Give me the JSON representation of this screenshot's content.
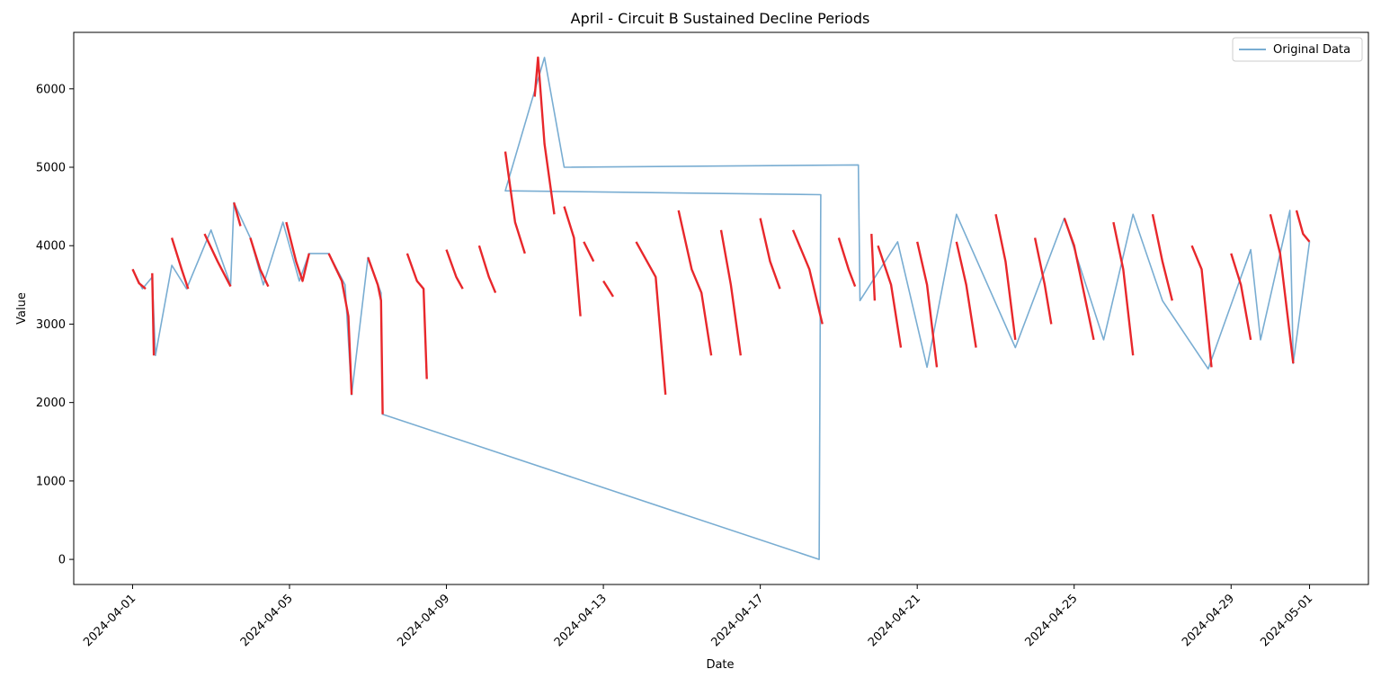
{
  "chart_data": {
    "type": "line",
    "title": "April - Circuit B Sustained Decline Periods",
    "xlabel": "Date",
    "ylabel": "Value",
    "xlim": [
      "2024-03-30T12:00",
      "2024-05-02T12:00"
    ],
    "ylim": [
      -320,
      6720
    ],
    "x_ticks": [
      "2024-04-01",
      "2024-04-05",
      "2024-04-09",
      "2024-04-13",
      "2024-04-17",
      "2024-04-21",
      "2024-04-25",
      "2024-04-29",
      "2024-05-01"
    ],
    "y_ticks": [
      0,
      1000,
      2000,
      3000,
      4000,
      5000,
      6000
    ],
    "grid": false,
    "legend": {
      "position": "top-right",
      "entries": [
        "Original Data"
      ]
    },
    "colors": {
      "original": "#1f77b4",
      "decline": "#e8272b"
    },
    "series": [
      {
        "name": "Original Data",
        "points": [
          [
            "2024-04-01T00:00",
            3700
          ],
          [
            "2024-04-01T06:00",
            3450
          ],
          [
            "2024-04-01T12:00",
            3600
          ],
          [
            "2024-04-01T14:00",
            2600
          ],
          [
            "2024-04-02T00:00",
            3750
          ],
          [
            "2024-04-02T09:00",
            3450
          ],
          [
            "2024-04-03T00:00",
            4200
          ],
          [
            "2024-04-03T12:00",
            3500
          ],
          [
            "2024-04-03T14:00",
            4550
          ],
          [
            "2024-04-04T00:00",
            4100
          ],
          [
            "2024-04-04T08:00",
            3500
          ],
          [
            "2024-04-04T20:00",
            4300
          ],
          [
            "2024-04-05T06:00",
            3550
          ],
          [
            "2024-04-05T12:00",
            3900
          ],
          [
            "2024-04-06T00:00",
            3900
          ],
          [
            "2024-04-06T10:00",
            3500
          ],
          [
            "2024-04-06T14:00",
            2100
          ],
          [
            "2024-04-07T00:00",
            3850
          ],
          [
            "2024-04-07T08:00",
            3400
          ],
          [
            "2024-04-07T09:00",
            1850
          ],
          [
            "2024-04-18T12:00",
            0
          ],
          [
            "2024-04-18T13:00",
            4650
          ],
          [
            "2024-04-10T12:00",
            4700
          ],
          [
            "2024-04-11T12:00",
            6400
          ],
          [
            "2024-04-12T00:00",
            5000
          ],
          [
            "2024-04-19T12:00",
            5030
          ],
          [
            "2024-04-19T13:00",
            3300
          ],
          [
            "2024-04-20T12:00",
            4050
          ],
          [
            "2024-04-21T06:00",
            2450
          ],
          [
            "2024-04-22T00:00",
            4400
          ],
          [
            "2024-04-23T12:00",
            2700
          ],
          [
            "2024-04-24T18:00",
            4350
          ],
          [
            "2024-04-25T18:00",
            2800
          ],
          [
            "2024-04-26T12:00",
            4400
          ],
          [
            "2024-04-27T06:00",
            3300
          ],
          [
            "2024-04-28T10:00",
            2430
          ],
          [
            "2024-04-29T12:00",
            3950
          ],
          [
            "2024-04-29T18:00",
            2800
          ],
          [
            "2024-04-30T12:00",
            4450
          ],
          [
            "2024-04-30T14:00",
            2500
          ],
          [
            "2024-05-01T00:00",
            4050
          ]
        ]
      },
      {
        "name": "",
        "segments": [
          [
            [
              "2024-04-01T00:00",
              3700
            ],
            [
              "2024-04-01T04:00",
              3520
            ],
            [
              "2024-04-01T08:00",
              3450
            ]
          ],
          [
            [
              "2024-04-01T12:00",
              3650
            ],
            [
              "2024-04-01T13:00",
              2600
            ]
          ],
          [
            [
              "2024-04-02T00:00",
              4100
            ],
            [
              "2024-04-02T06:00",
              3700
            ],
            [
              "2024-04-02T10:00",
              3450
            ]
          ],
          [
            [
              "2024-04-02T20:00",
              4150
            ],
            [
              "2024-04-03T04:00",
              3800
            ],
            [
              "2024-04-03T12:00",
              3480
            ]
          ],
          [
            [
              "2024-04-03T14:00",
              4550
            ],
            [
              "2024-04-03T18:00",
              4250
            ]
          ],
          [
            [
              "2024-04-04T00:00",
              4100
            ],
            [
              "2024-04-04T06:00",
              3700
            ],
            [
              "2024-04-04T11:00",
              3480
            ]
          ],
          [
            [
              "2024-04-04T22:00",
              4300
            ],
            [
              "2024-04-05T04:00",
              3800
            ],
            [
              "2024-04-05T08:00",
              3550
            ],
            [
              "2024-04-05T12:00",
              3900
            ]
          ],
          [
            [
              "2024-04-06T00:00",
              3900
            ],
            [
              "2024-04-06T08:00",
              3550
            ],
            [
              "2024-04-06T12:00",
              3100
            ],
            [
              "2024-04-06T14:00",
              2100
            ]
          ],
          [
            [
              "2024-04-07T00:00",
              3850
            ],
            [
              "2024-04-07T06:00",
              3500
            ],
            [
              "2024-04-07T08:00",
              3300
            ],
            [
              "2024-04-07T09:00",
              1850
            ]
          ],
          [
            [
              "2024-04-08T00:00",
              3900
            ],
            [
              "2024-04-08T06:00",
              3550
            ],
            [
              "2024-04-08T10:00",
              3450
            ],
            [
              "2024-04-08T12:00",
              2300
            ]
          ],
          [
            [
              "2024-04-09T00:00",
              3950
            ],
            [
              "2024-04-09T06:00",
              3600
            ],
            [
              "2024-04-09T10:00",
              3450
            ]
          ],
          [
            [
              "2024-04-09T20:00",
              4000
            ],
            [
              "2024-04-10T02:00",
              3600
            ],
            [
              "2024-04-10T06:00",
              3400
            ]
          ],
          [
            [
              "2024-04-10T12:00",
              5200
            ],
            [
              "2024-04-10T18:00",
              4300
            ],
            [
              "2024-04-11T00:00",
              3900
            ]
          ],
          [
            [
              "2024-04-11T06:00",
              5900
            ],
            [
              "2024-04-11T08:00",
              6400
            ],
            [
              "2024-04-11T12:00",
              5300
            ],
            [
              "2024-04-11T18:00",
              4400
            ]
          ],
          [
            [
              "2024-04-12T00:00",
              4500
            ],
            [
              "2024-04-12T06:00",
              4100
            ],
            [
              "2024-04-12T10:00",
              3100
            ]
          ],
          [
            [
              "2024-04-12T12:00",
              4050
            ],
            [
              "2024-04-12T18:00",
              3800
            ]
          ],
          [
            [
              "2024-04-13T00:00",
              3550
            ],
            [
              "2024-04-13T06:00",
              3350
            ]
          ],
          [
            [
              "2024-04-13T20:00",
              4050
            ],
            [
              "2024-04-14T08:00",
              3600
            ],
            [
              "2024-04-14T14:00",
              2100
            ]
          ],
          [
            [
              "2024-04-14T22:00",
              4450
            ],
            [
              "2024-04-15T06:00",
              3700
            ],
            [
              "2024-04-15T12:00",
              3400
            ],
            [
              "2024-04-15T18:00",
              2600
            ]
          ],
          [
            [
              "2024-04-16T00:00",
              4200
            ],
            [
              "2024-04-16T06:00",
              3500
            ],
            [
              "2024-04-16T12:00",
              2600
            ]
          ],
          [
            [
              "2024-04-17T00:00",
              4350
            ],
            [
              "2024-04-17T06:00",
              3800
            ],
            [
              "2024-04-17T12:00",
              3450
            ]
          ],
          [
            [
              "2024-04-17T20:00",
              4200
            ],
            [
              "2024-04-18T06:00",
              3700
            ],
            [
              "2024-04-18T14:00",
              3000
            ]
          ],
          [
            [
              "2024-04-19T00:00",
              4100
            ],
            [
              "2024-04-19T06:00",
              3700
            ],
            [
              "2024-04-19T10:00",
              3480
            ]
          ],
          [
            [
              "2024-04-19T20:00",
              4150
            ],
            [
              "2024-04-19T22:00",
              3300
            ]
          ],
          [
            [
              "2024-04-20T00:00",
              4000
            ],
            [
              "2024-04-20T08:00",
              3500
            ],
            [
              "2024-04-20T14:00",
              2700
            ]
          ],
          [
            [
              "2024-04-21T00:00",
              4050
            ],
            [
              "2024-04-21T06:00",
              3500
            ],
            [
              "2024-04-21T12:00",
              2450
            ]
          ],
          [
            [
              "2024-04-22T00:00",
              4050
            ],
            [
              "2024-04-22T06:00",
              3500
            ],
            [
              "2024-04-22T12:00",
              2700
            ]
          ],
          [
            [
              "2024-04-23T00:00",
              4400
            ],
            [
              "2024-04-23T06:00",
              3800
            ],
            [
              "2024-04-23T12:00",
              2800
            ]
          ],
          [
            [
              "2024-04-24T00:00",
              4100
            ],
            [
              "2024-04-24T06:00",
              3500
            ],
            [
              "2024-04-24T10:00",
              3000
            ]
          ],
          [
            [
              "2024-04-24T18:00",
              4350
            ],
            [
              "2024-04-25T00:00",
              4000
            ],
            [
              "2024-04-25T12:00",
              2800
            ]
          ],
          [
            [
              "2024-04-26T00:00",
              4300
            ],
            [
              "2024-04-26T06:00",
              3700
            ],
            [
              "2024-04-26T12:00",
              2600
            ]
          ],
          [
            [
              "2024-04-27T00:00",
              4400
            ],
            [
              "2024-04-27T06:00",
              3800
            ],
            [
              "2024-04-27T12:00",
              3300
            ]
          ],
          [
            [
              "2024-04-28T00:00",
              4000
            ],
            [
              "2024-04-28T06:00",
              3700
            ],
            [
              "2024-04-28T12:00",
              2450
            ]
          ],
          [
            [
              "2024-04-29T00:00",
              3900
            ],
            [
              "2024-04-29T06:00",
              3500
            ],
            [
              "2024-04-29T12:00",
              2800
            ]
          ],
          [
            [
              "2024-04-30T00:00",
              4400
            ],
            [
              "2024-04-30T06:00",
              3900
            ],
            [
              "2024-04-30T14:00",
              2500
            ]
          ],
          [
            [
              "2024-04-30T16:00",
              4450
            ],
            [
              "2024-04-30T20:00",
              4150
            ],
            [
              "2024-05-01T00:00",
              4050
            ]
          ]
        ]
      }
    ]
  }
}
